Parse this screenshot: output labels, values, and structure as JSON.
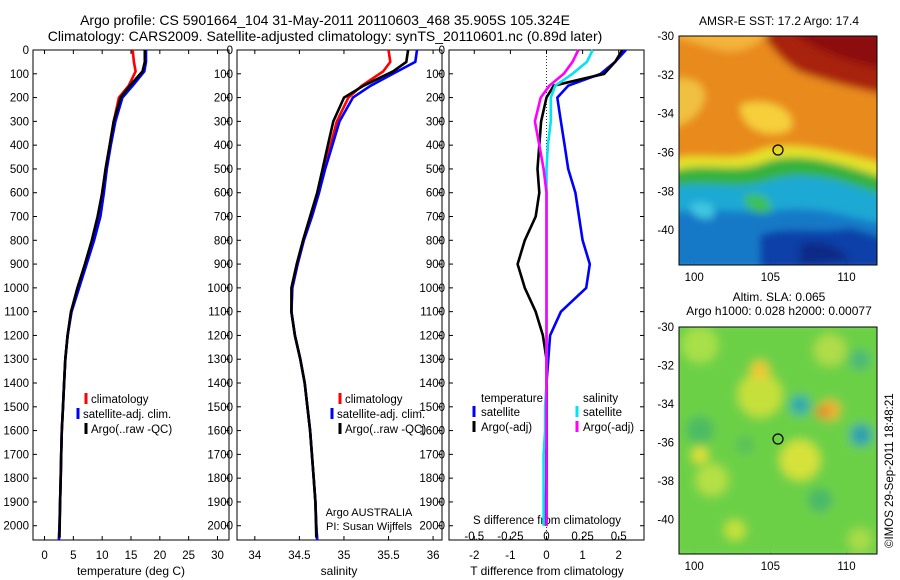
{
  "header": {
    "title_line1": "Argo profile: CS 5901664_104 31-May-2011 20110603_468 35.905S 105.324E",
    "title_line2": "Climatology: CARS2009. Satellite-adjusted climatology: synTS_20110601.nc (0.89d later)"
  },
  "colors": {
    "climatology": "#ff0000",
    "satellite": "#0000ff",
    "argo": "#000000",
    "salinity_satellite": "#00e5ee",
    "salinity_argo": "#ff00ff"
  },
  "panels": {
    "depth_ticks": [
      "0",
      "100",
      "200",
      "300",
      "400",
      "500",
      "600",
      "700",
      "800",
      "900",
      "1000",
      "1100",
      "1200",
      "1300",
      "1400",
      "1500",
      "1600",
      "1700",
      "1800",
      "1900",
      "2000"
    ],
    "temperature": {
      "xlabel": "temperature (deg C)",
      "xticks": [
        "0",
        "5",
        "10",
        "15",
        "20",
        "25",
        "30"
      ],
      "legend": [
        "climatology",
        "satellite-adj. clim.",
        "Argo(..raw -QC)"
      ]
    },
    "salinity": {
      "xlabel": "salinity",
      "xticks": [
        "34",
        "34.5",
        "35",
        "35.5",
        "36"
      ],
      "legend": [
        "climatology",
        "satellite-adj. clim.",
        "Argo(..raw -QC)"
      ],
      "note_line1": "Argo AUSTRALIA",
      "note_line2": "PI: Susan Wijffels"
    },
    "difference": {
      "xlabel": "T difference from climatology",
      "top_label": "S difference from climatology",
      "xticks": [
        "-2",
        "-1",
        "0",
        "1",
        "2"
      ],
      "s_ticks": [
        "-0.5",
        "-0.25",
        "0",
        "0.25",
        "0.5"
      ],
      "legend_temperature_title": "temperature",
      "legend_salinity_title": "salinity",
      "legend_temperature": [
        "satellite",
        "Argo(-adj)"
      ],
      "legend_salinity": [
        "satellite",
        "Argo(-adj)"
      ]
    }
  },
  "maps": {
    "sst_title": "AMSR-E SST: 17.2 Argo: 17.4",
    "sla_title_line1": "Altim. SLA: 0.065",
    "sla_title_line2": "Argo h1000: 0.028 h2000: 0.00077",
    "yticks": [
      "-30",
      "-32",
      "-34",
      "-36",
      "-38",
      "-40"
    ],
    "xticks": [
      "100",
      "105",
      "110"
    ]
  },
  "credit": "©IMOS 29-Sep-2011 18:48:21",
  "chart_data": [
    {
      "type": "line",
      "title": "",
      "xlabel": "temperature (deg C)",
      "ylabel": "",
      "xlim": [
        -2,
        32
      ],
      "ylim": [
        2060,
        0
      ],
      "series": [
        {
          "name": "climatology",
          "x": [
            15.3,
            15.5,
            15.8,
            14.6,
            12.9,
            12.0,
            11.3,
            10.6,
            10.0,
            9.4,
            8.4,
            7.2,
            5.9,
            4.6,
            4.0,
            3.6,
            3.4,
            3.2,
            3.0,
            2.9,
            2.8,
            2.7,
            2.6,
            2.5
          ],
          "y": [
            0,
            50,
            90,
            150,
            200,
            300,
            400,
            500,
            600,
            700,
            800,
            900,
            1000,
            1100,
            1200,
            1300,
            1400,
            1500,
            1600,
            1700,
            1800,
            1900,
            2000,
            2060
          ]
        },
        {
          "name": "satellite-adj. clim.",
          "x": [
            17.6,
            17.6,
            17.3,
            15.3,
            13.5,
            12.3,
            11.5,
            10.8,
            10.3,
            9.7,
            8.6,
            7.3,
            6.0,
            4.7,
            4.0,
            3.6,
            3.4,
            3.2,
            3.0,
            2.9,
            2.8,
            2.7,
            2.6,
            2.5
          ],
          "y": [
            0,
            50,
            90,
            150,
            200,
            300,
            400,
            500,
            600,
            700,
            800,
            900,
            1000,
            1100,
            1200,
            1300,
            1400,
            1500,
            1600,
            1700,
            1800,
            1900,
            2000,
            2060
          ]
        },
        {
          "name": "Argo(..raw -QC)",
          "x": [
            17.4,
            17.4,
            17.0,
            14.8,
            13.2,
            12.0,
            11.3,
            10.6,
            10.0,
            9.2,
            8.2,
            7.0,
            5.7,
            4.6,
            4.0,
            3.6,
            3.4,
            3.2,
            3.0,
            2.9,
            2.8,
            2.7,
            2.6
          ],
          "y": [
            0,
            50,
            90,
            150,
            200,
            300,
            400,
            500,
            600,
            700,
            800,
            900,
            1000,
            1100,
            1200,
            1300,
            1400,
            1500,
            1600,
            1700,
            1800,
            1900,
            2050
          ]
        }
      ]
    },
    {
      "type": "line",
      "title": "",
      "xlabel": "salinity",
      "ylabel": "",
      "xlim": [
        33.8,
        36.1
      ],
      "ylim": [
        2060,
        0
      ],
      "series": [
        {
          "name": "climatology",
          "x": [
            35.5,
            35.52,
            35.44,
            35.2,
            35.05,
            34.92,
            34.85,
            34.78,
            34.72,
            34.64,
            34.55,
            34.48,
            34.42,
            34.41,
            34.45,
            34.51,
            34.56,
            34.59,
            34.62,
            34.64,
            34.66,
            34.68,
            34.69,
            34.7
          ],
          "y": [
            0,
            50,
            90,
            150,
            200,
            300,
            400,
            500,
            600,
            700,
            800,
            900,
            1000,
            1100,
            1200,
            1300,
            1400,
            1500,
            1600,
            1700,
            1800,
            1900,
            2000,
            2060
          ]
        },
        {
          "name": "satellite-adj. clim.",
          "x": [
            35.82,
            35.8,
            35.6,
            35.3,
            35.1,
            34.95,
            34.87,
            34.79,
            34.72,
            34.64,
            34.55,
            34.48,
            34.42,
            34.41,
            34.45,
            34.51,
            34.56,
            34.59,
            34.62,
            34.64,
            34.66,
            34.68,
            34.69,
            34.7
          ],
          "y": [
            0,
            50,
            90,
            150,
            200,
            300,
            400,
            500,
            600,
            700,
            800,
            900,
            1000,
            1100,
            1200,
            1300,
            1400,
            1500,
            1600,
            1700,
            1800,
            1900,
            2000,
            2060
          ]
        },
        {
          "name": "Argo(..raw -QC)",
          "x": [
            35.72,
            35.7,
            35.55,
            35.22,
            35.0,
            34.88,
            34.82,
            34.76,
            34.7,
            34.62,
            34.54,
            34.47,
            34.41,
            34.41,
            34.45,
            34.51,
            34.56,
            34.59,
            34.62,
            34.64,
            34.66,
            34.68,
            34.69
          ],
          "y": [
            0,
            50,
            90,
            150,
            200,
            300,
            400,
            500,
            600,
            700,
            800,
            900,
            1000,
            1100,
            1200,
            1300,
            1400,
            1500,
            1600,
            1700,
            1800,
            1900,
            2050
          ]
        }
      ]
    },
    {
      "type": "line",
      "title": "",
      "xlabel": "T difference from climatology",
      "x2label": "S difference from climatology",
      "xlim": [
        -2.7,
        2.7
      ],
      "x2lim": [
        -0.675,
        0.675
      ],
      "ylim": [
        2060,
        0
      ],
      "series": [
        {
          "name": "temperature satellite",
          "axis": "T",
          "x": [
            2.2,
            1.9,
            1.5,
            0.6,
            0.3,
            0.4,
            0.5,
            0.6,
            0.8,
            0.9,
            1.0,
            1.2,
            1.1,
            0.4,
            0.1,
            0.05,
            0.0,
            0.0,
            0.0,
            0.0,
            0.0,
            -0.05
          ],
          "y": [
            0,
            50,
            100,
            150,
            200,
            300,
            400,
            500,
            600,
            700,
            800,
            900,
            1000,
            1100,
            1200,
            1300,
            1400,
            1500,
            1600,
            1700,
            1800,
            2000
          ]
        },
        {
          "name": "temperature Argo(-adj)",
          "axis": "T",
          "x": [
            2.1,
            1.9,
            1.6,
            0.2,
            0.0,
            -0.15,
            -0.2,
            -0.25,
            -0.2,
            -0.3,
            -0.6,
            -0.8,
            -0.6,
            -0.3,
            -0.1,
            0.0,
            0.0,
            0.0,
            0.0,
            0.0,
            0.0,
            0.0
          ],
          "y": [
            0,
            50,
            100,
            150,
            200,
            300,
            400,
            500,
            600,
            700,
            800,
            900,
            1000,
            1100,
            1200,
            1300,
            1400,
            1500,
            1600,
            1700,
            1800,
            2000
          ]
        },
        {
          "name": "salinity satellite",
          "axis": "S",
          "x": [
            0.32,
            0.28,
            0.18,
            0.06,
            0.03,
            0.03,
            0.01,
            0.0,
            0.0,
            0.0,
            0.0,
            0.0,
            0.0,
            0.0,
            0.0,
            0.0,
            0.0,
            -0.01,
            -0.01,
            -0.02,
            -0.02,
            -0.02
          ],
          "y": [
            0,
            50,
            100,
            150,
            200,
            300,
            400,
            500,
            600,
            700,
            800,
            900,
            1000,
            1100,
            1200,
            1300,
            1400,
            1500,
            1600,
            1700,
            1800,
            2000
          ]
        },
        {
          "name": "salinity Argo(-adj)",
          "axis": "S",
          "x": [
            0.22,
            0.18,
            0.12,
            0.02,
            -0.04,
            -0.08,
            -0.05,
            -0.02,
            0.0,
            0.0,
            0.0,
            0.0,
            0.0,
            0.0,
            0.0,
            0.0,
            0.0,
            0.0,
            0.0,
            0.0,
            0.0,
            0.0
          ],
          "y": [
            0,
            50,
            100,
            150,
            200,
            300,
            400,
            500,
            600,
            700,
            800,
            900,
            1000,
            1100,
            1200,
            1300,
            1400,
            1500,
            1600,
            1700,
            1800,
            2000
          ]
        }
      ]
    },
    {
      "type": "heatmap",
      "title": "AMSR-E SST: 17.2 Argo: 17.4",
      "xlim": [
        99,
        112
      ],
      "ylim": [
        -41.8,
        -30
      ],
      "argo_position": {
        "x": 105.324,
        "y": -35.905
      }
    },
    {
      "type": "heatmap",
      "title": "Altim. SLA: 0.065",
      "xlim": [
        99,
        112
      ],
      "ylim": [
        -41.8,
        -30
      ],
      "argo_position": {
        "x": 105.324,
        "y": -35.905
      }
    }
  ]
}
